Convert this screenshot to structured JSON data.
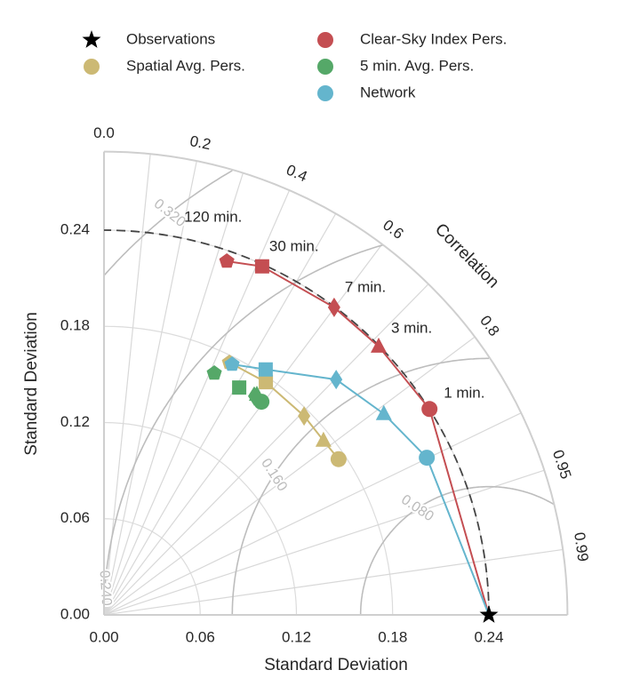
{
  "chart_data": {
    "type": "taylor",
    "x_label": "Standard Deviation",
    "y_label": "Standard Deviation",
    "corr_title": "Correlation",
    "std_lim": [
      0,
      0.289
    ],
    "std_ticks": [
      {
        "value": 0,
        "label": "0.00"
      },
      0.06,
      0.12,
      0.18,
      0.24
    ],
    "corr_ticks": [
      {
        "value": 0,
        "label": "0.0"
      },
      0.2,
      0.4,
      0.6,
      0.8,
      0.95,
      0.99
    ],
    "corr_grid": [
      0.1,
      0.2,
      0.3,
      0.4,
      0.5,
      0.6,
      0.7,
      0.8,
      0.9,
      0.95,
      0.99
    ],
    "rmsd_levels": [
      {
        "value": 0.08,
        "label": "0.080"
      },
      {
        "value": 0.16,
        "label": "0.160"
      },
      {
        "value": 0.24,
        "label": "0.240"
      },
      {
        "value": 0.32,
        "label": "0.320"
      }
    ],
    "reference": {
      "name": "Observations",
      "std": 0.24,
      "corr": 1.0,
      "color": "#000000"
    },
    "lead_labels": [
      "1 min.",
      "3 min.",
      "7 min.",
      "30 min.",
      "120 min."
    ],
    "markers": [
      "circle",
      "triangle",
      "diamond",
      "square",
      "pentagon"
    ],
    "series": [
      {
        "name": "Spatial Avg. Pers.",
        "color": "#ccb974",
        "line": true,
        "line_from_reference": false,
        "std": [
          0.1756,
          0.1748,
          0.176,
          0.1768,
          0.1758
        ],
        "corr": [
          0.833,
          0.783,
          0.709,
          0.571,
          0.445
        ]
      },
      {
        "name": "Clear-Sky Index Pers.",
        "color": "#c44e52",
        "line": true,
        "line_from_reference": true,
        "std": [
          0.2402,
          0.2395,
          0.2396,
          0.2387,
          0.2335
        ],
        "corr": [
          0.845,
          0.715,
          0.599,
          0.413,
          0.328
        ]
      },
      {
        "name": "5 min. Avg. Pers.",
        "color": "#55a868",
        "line": false,
        "line_from_reference": false,
        "std": [
          0.1653,
          0.1673,
          0.1655,
          0.165,
          0.1657
        ],
        "corr": [
          0.594,
          0.57,
          0.566,
          0.511,
          0.415
        ]
      },
      {
        "name": "Network",
        "color": "#64b5cd",
        "line": true,
        "line_from_reference": true,
        "std": [
          0.2239,
          0.2149,
          0.2062,
          0.1833,
          0.1755
        ],
        "corr": [
          0.899,
          0.812,
          0.702,
          0.55,
          0.455
        ]
      }
    ]
  }
}
